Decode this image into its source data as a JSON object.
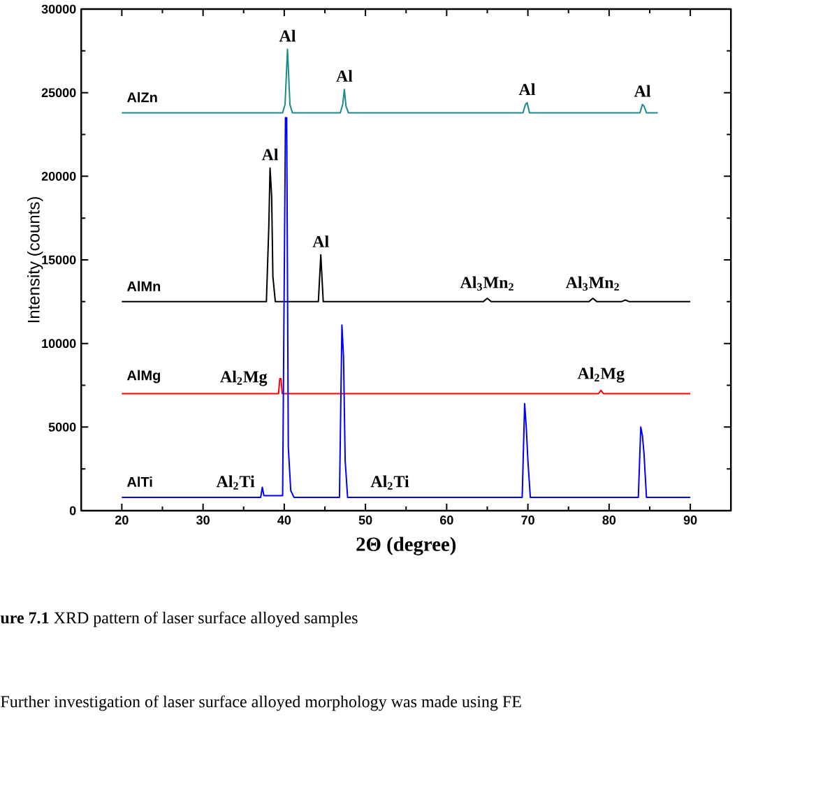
{
  "chart_data": {
    "type": "line",
    "xlabel": "2Θ (degree)",
    "ylabel": "Intensity (counts)",
    "xlim": [
      15,
      95
    ],
    "xticks": [
      20,
      30,
      40,
      50,
      60,
      70,
      80,
      90
    ],
    "ylim": [
      0,
      30000
    ],
    "yticks": [
      0,
      5000,
      10000,
      15000,
      20000,
      25000,
      30000
    ],
    "grid": false,
    "marker": "none",
    "line_style": "solid",
    "series": [
      {
        "name": "AlZn",
        "color": "#1a8a8a",
        "x": [
          20,
          39.8,
          40.1,
          40.4,
          40.7,
          41,
          46.9,
          47.2,
          47.4,
          47.6,
          47.9,
          69.4,
          69.7,
          69.9,
          70.2,
          83.8,
          84.1,
          84.3,
          84.6,
          86
        ],
        "values": [
          23800,
          23800,
          24300,
          27600,
          24300,
          23800,
          23800,
          24300,
          25200,
          24200,
          23800,
          23800,
          24300,
          24400,
          23800,
          23800,
          24300,
          24200,
          23800,
          23800
        ]
      },
      {
        "name": "AlMn",
        "color": "#000000",
        "x": [
          20,
          37.8,
          38.1,
          38.25,
          38.45,
          38.6,
          38.9,
          44.2,
          44.5,
          44.8,
          64.5,
          65,
          65.5,
          77.5,
          78,
          78.5,
          81.5,
          82,
          82.5,
          90
        ],
        "values": [
          12500,
          12500,
          17000,
          20500,
          18800,
          14000,
          12500,
          12500,
          15300,
          12500,
          12500,
          12700,
          12500,
          12500,
          12700,
          12500,
          12500,
          12600,
          12500,
          12500
        ]
      },
      {
        "name": "AlMg",
        "color": "#ff0000",
        "x": [
          20,
          39.3,
          39.45,
          39.6,
          39.75,
          78.7,
          79,
          79.3,
          90
        ],
        "values": [
          7000,
          7000,
          7900,
          7900,
          7000,
          7000,
          7200,
          7000,
          7000
        ]
      },
      {
        "name": "AlTi",
        "color": "#0000ff",
        "x": [
          20,
          37.1,
          37.3,
          37.5,
          39.8,
          40.15,
          40.3,
          40.5,
          40.8,
          41.2,
          46.8,
          47.1,
          47.3,
          47.5,
          47.8,
          69.3,
          69.6,
          69.8,
          70,
          70.3,
          83.6,
          83.9,
          84.1,
          84.3,
          84.6,
          90
        ],
        "values": [
          800,
          800,
          1400,
          900,
          900,
          23500,
          23500,
          3800,
          1200,
          800,
          800,
          11100,
          9200,
          3000,
          800,
          800,
          6400,
          5000,
          3000,
          800,
          800,
          5000,
          4500,
          3400,
          800,
          800
        ]
      }
    ],
    "annotations": [
      {
        "text": "Al",
        "x": 40.4,
        "y": 27600
      },
      {
        "text": "Al",
        "x": 47.4,
        "y": 25200
      },
      {
        "text": "Al",
        "x": 69.9,
        "y": 24400
      },
      {
        "text": "Al",
        "x": 84.1,
        "y": 24300
      },
      {
        "text": "Al",
        "x": 38.25,
        "y": 20500
      },
      {
        "text": "Al",
        "x": 44.5,
        "y": 15300
      },
      {
        "text": "Al$_{3}$Mn$_{2}$",
        "x": 65,
        "y": 12700
      },
      {
        "text": "Al$_{3}$Mn$_{2}$",
        "x": 78,
        "y": 12700
      },
      {
        "text": "Al$_{2}$Mg",
        "x": 35,
        "y": 7000
      },
      {
        "text": "Al$_{2}$Mg",
        "x": 79,
        "y": 7200
      },
      {
        "text": "Al$_{2}$Ti",
        "x": 34,
        "y": 800
      },
      {
        "text": "Al$_{2}$Ti",
        "x": 53,
        "y": 800
      },
      "**ure 7.1** XRD pattern of laser surface alloyed samples",
      "Further investigation of laser surface alloyed morphology was made using FE"
    ]
  }
}
